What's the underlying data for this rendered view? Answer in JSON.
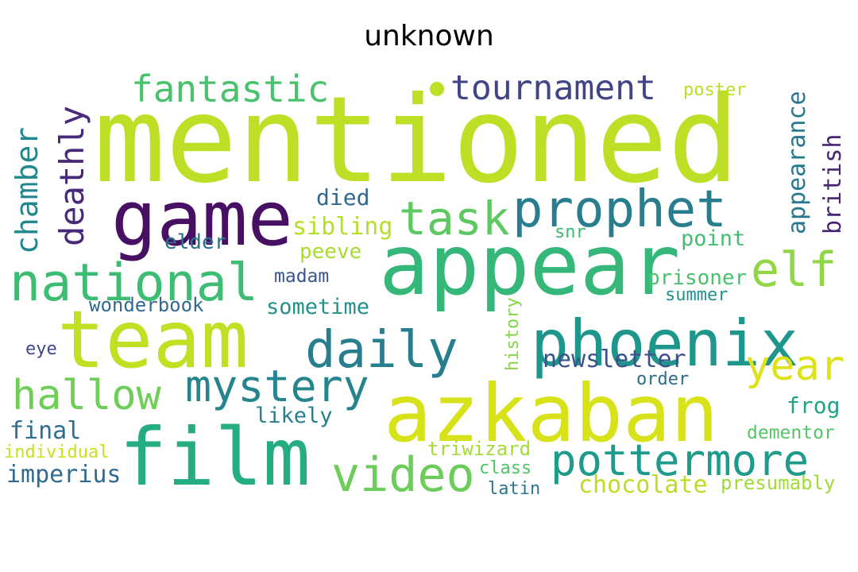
{
  "title": "unknown",
  "words": [
    {
      "text": "mentioned",
      "color": "#bddf26"
    },
    {
      "text": "appear",
      "color": "#35b779"
    },
    {
      "text": "azkaban",
      "color": "#d8e219"
    },
    {
      "text": "team",
      "color": "#c2df23"
    },
    {
      "text": "film",
      "color": "#25ac82"
    },
    {
      "text": "game",
      "color": "#471063"
    },
    {
      "text": "phoenix",
      "color": "#1f968b"
    },
    {
      "text": "national",
      "color": "#3dbc74"
    },
    {
      "text": "prophet",
      "color": "#287d8e"
    },
    {
      "text": "daily",
      "color": "#277f8e"
    },
    {
      "text": "video",
      "color": "#6ccd5a"
    },
    {
      "text": "pottermore",
      "color": "#1e9b8a"
    },
    {
      "text": "task",
      "color": "#5ec962"
    },
    {
      "text": "elf",
      "color": "#8fd744"
    },
    {
      "text": "mystery",
      "color": "#25848e"
    },
    {
      "text": "hallow",
      "color": "#6ece58"
    },
    {
      "text": "year",
      "color": "#dde318"
    },
    {
      "text": "tournament",
      "color": "#414487"
    },
    {
      "text": "fantastic",
      "color": "#4ac16d"
    },
    {
      "text": "deathly",
      "color": "#482878"
    },
    {
      "text": "chamber",
      "color": "#23888e"
    },
    {
      "text": "appearance",
      "color": "#2a788e"
    },
    {
      "text": "british",
      "color": "#482475"
    },
    {
      "text": "newsletter",
      "color": "#3b528b"
    },
    {
      "text": "died",
      "color": "#31688e"
    },
    {
      "text": "sibling",
      "color": "#b5de2b"
    },
    {
      "text": "elder",
      "color": "#2c728e"
    },
    {
      "text": "peeve",
      "color": "#a8db34"
    },
    {
      "text": "madam",
      "color": "#39568c"
    },
    {
      "text": "sometime",
      "color": "#21918c"
    },
    {
      "text": "wonderbook",
      "color": "#306a8e"
    },
    {
      "text": "likely",
      "color": "#277f8e"
    },
    {
      "text": "final",
      "color": "#2e6e8e"
    },
    {
      "text": "imperius",
      "color": "#306a8e"
    },
    {
      "text": "individual",
      "color": "#c8e020"
    },
    {
      "text": "eye",
      "color": "#3e4989"
    },
    {
      "text": "history",
      "color": "#86d549"
    },
    {
      "text": "triwizard",
      "color": "#a5db36"
    },
    {
      "text": "class",
      "color": "#50c46a"
    },
    {
      "text": "latin",
      "color": "#2a788e"
    },
    {
      "text": "chocolate",
      "color": "#bade28"
    },
    {
      "text": "presumably",
      "color": "#a2da37"
    },
    {
      "text": "dementor",
      "color": "#54c568"
    },
    {
      "text": "frog",
      "color": "#20a386"
    },
    {
      "text": "order",
      "color": "#2f6c8e"
    },
    {
      "text": "summer",
      "color": "#21918c"
    },
    {
      "text": "prisoner",
      "color": "#4ac16d"
    },
    {
      "text": "point",
      "color": "#42be71"
    },
    {
      "text": "snr",
      "color": "#3aba76"
    },
    {
      "text": "poster",
      "color": "#b8de29"
    }
  ]
}
